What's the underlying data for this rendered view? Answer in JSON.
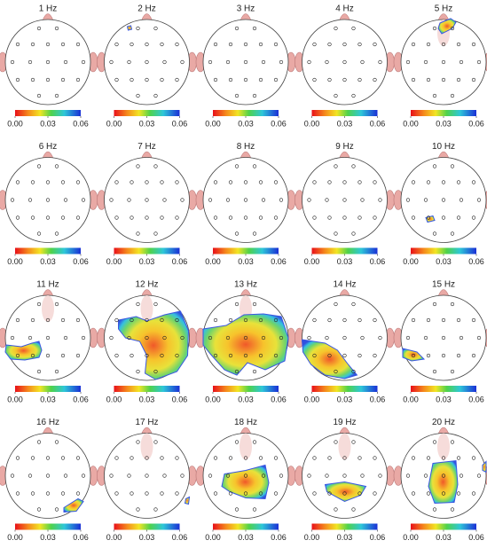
{
  "chart_data": [
    {
      "type": "topomap",
      "title": "1 Hz",
      "clim": [
        0,
        0.06
      ],
      "cticks": [
        {
          "value": 0,
          "label": "0.00"
        },
        {
          "value": 0.03,
          "label": "0.03"
        },
        {
          "value": 0.06,
          "label": "0.06"
        }
      ]
    },
    {
      "type": "topomap",
      "title": "2 Hz",
      "clim": [
        0,
        0.06
      ],
      "cticks": [
        {
          "value": 0,
          "label": "0.00"
        },
        {
          "value": 0.03,
          "label": "0.03"
        },
        {
          "value": 0.06,
          "label": "0.06"
        }
      ]
    },
    {
      "type": "topomap",
      "title": "3 Hz",
      "clim": [
        0,
        0.06
      ],
      "cticks": [
        {
          "value": 0,
          "label": "0.00"
        },
        {
          "value": 0.03,
          "label": "0.03"
        },
        {
          "value": 0.06,
          "label": "0.06"
        }
      ]
    },
    {
      "type": "topomap",
      "title": "4 Hz",
      "clim": [
        0,
        0.06
      ],
      "cticks": [
        {
          "value": 0,
          "label": "0.00"
        },
        {
          "value": 0.03,
          "label": "0.03"
        },
        {
          "value": 0.06,
          "label": "0.06"
        }
      ]
    },
    {
      "type": "topomap",
      "title": "5 Hz",
      "clim": [
        0,
        0.06
      ],
      "cticks": [
        {
          "value": 0,
          "label": "0.00"
        },
        {
          "value": 0.03,
          "label": "0.03"
        },
        {
          "value": 0.06,
          "label": "0.06"
        }
      ]
    },
    {
      "type": "topomap",
      "title": "6 Hz",
      "clim": [
        0,
        0.06
      ],
      "cticks": [
        {
          "value": 0,
          "label": "0.00"
        },
        {
          "value": 0.03,
          "label": "0.03"
        },
        {
          "value": 0.06,
          "label": "0.06"
        }
      ]
    },
    {
      "type": "topomap",
      "title": "7 Hz",
      "clim": [
        0,
        0.06
      ],
      "cticks": [
        {
          "value": 0,
          "label": "0.00"
        },
        {
          "value": 0.03,
          "label": "0.03"
        },
        {
          "value": 0.06,
          "label": "0.06"
        }
      ]
    },
    {
      "type": "topomap",
      "title": "8 Hz",
      "clim": [
        0,
        0.06
      ],
      "cticks": [
        {
          "value": 0,
          "label": "0.00"
        },
        {
          "value": 0.03,
          "label": "0.03"
        },
        {
          "value": 0.06,
          "label": "0.06"
        }
      ]
    },
    {
      "type": "topomap",
      "title": "9 Hz",
      "clim": [
        0,
        0.06
      ],
      "cticks": [
        {
          "value": 0,
          "label": "0.00"
        },
        {
          "value": 0.03,
          "label": "0.03"
        },
        {
          "value": 0.06,
          "label": "0.06"
        }
      ]
    },
    {
      "type": "topomap",
      "title": "10 Hz",
      "clim": [
        0,
        0.06
      ],
      "cticks": [
        {
          "value": 0,
          "label": "0.00"
        },
        {
          "value": 0.03,
          "label": "0.03"
        },
        {
          "value": 0.06,
          "label": "0.06"
        }
      ]
    },
    {
      "type": "topomap",
      "title": "11 Hz",
      "clim": [
        0,
        0.06
      ],
      "cticks": [
        {
          "value": 0,
          "label": "0.00"
        },
        {
          "value": 0.03,
          "label": "0.03"
        },
        {
          "value": 0.06,
          "label": "0.06"
        }
      ]
    },
    {
      "type": "topomap",
      "title": "12 Hz",
      "clim": [
        0,
        0.06
      ],
      "cticks": [
        {
          "value": 0,
          "label": "0.00"
        },
        {
          "value": 0.03,
          "label": "0.03"
        },
        {
          "value": 0.06,
          "label": "0.06"
        }
      ]
    },
    {
      "type": "topomap",
      "title": "13 Hz",
      "clim": [
        0,
        0.06
      ],
      "cticks": [
        {
          "value": 0,
          "label": "0.00"
        },
        {
          "value": 0.03,
          "label": "0.03"
        },
        {
          "value": 0.06,
          "label": "0.06"
        }
      ]
    },
    {
      "type": "topomap",
      "title": "14 Hz",
      "clim": [
        0,
        0.06
      ],
      "cticks": [
        {
          "value": 0,
          "label": "0.00"
        },
        {
          "value": 0.03,
          "label": "0.03"
        },
        {
          "value": 0.06,
          "label": "0.06"
        }
      ]
    },
    {
      "type": "topomap",
      "title": "15 Hz",
      "clim": [
        0,
        0.06
      ],
      "cticks": [
        {
          "value": 0,
          "label": "0.00"
        },
        {
          "value": 0.03,
          "label": "0.03"
        },
        {
          "value": 0.06,
          "label": "0.06"
        }
      ]
    },
    {
      "type": "topomap",
      "title": "16 Hz",
      "clim": [
        0,
        0.06
      ],
      "cticks": [
        {
          "value": 0,
          "label": "0.00"
        },
        {
          "value": 0.03,
          "label": "0.03"
        },
        {
          "value": 0.06,
          "label": "0.06"
        }
      ]
    },
    {
      "type": "topomap",
      "title": "17 Hz",
      "clim": [
        0,
        0.06
      ],
      "cticks": [
        {
          "value": 0,
          "label": "0.00"
        },
        {
          "value": 0.03,
          "label": "0.03"
        },
        {
          "value": 0.06,
          "label": "0.06"
        }
      ]
    },
    {
      "type": "topomap",
      "title": "18 Hz",
      "clim": [
        0,
        0.06
      ],
      "cticks": [
        {
          "value": 0,
          "label": "0.00"
        },
        {
          "value": 0.03,
          "label": "0.03"
        },
        {
          "value": 0.06,
          "label": "0.06"
        }
      ]
    },
    {
      "type": "topomap",
      "title": "19 Hz",
      "clim": [
        0,
        0.06
      ],
      "cticks": [
        {
          "value": 0,
          "label": "0.00"
        },
        {
          "value": 0.03,
          "label": "0.03"
        },
        {
          "value": 0.06,
          "label": "0.06"
        }
      ]
    },
    {
      "type": "topomap",
      "title": "20 Hz",
      "clim": [
        0,
        0.06
      ],
      "cticks": [
        {
          "value": 0,
          "label": "0.00"
        },
        {
          "value": 0.03,
          "label": "0.03"
        },
        {
          "value": 0.06,
          "label": "0.06"
        }
      ]
    }
  ]
}
